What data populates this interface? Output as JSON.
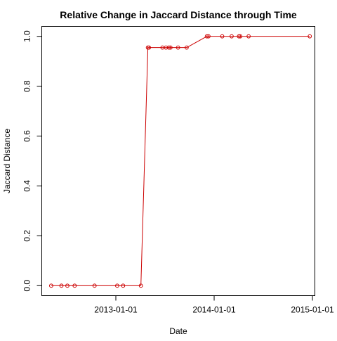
{
  "chart_data": {
    "type": "line",
    "title": "Relative Change in Jaccard Distance through Time",
    "xlabel": "Date",
    "ylabel": "Jaccard Distance",
    "x_ticks": [
      "2013-01-01",
      "2014-01-01",
      "2015-01-01"
    ],
    "y_ticks": [
      "0.0",
      "0.2",
      "0.4",
      "0.6",
      "0.8",
      "1.0"
    ],
    "xlim": [
      "2012-04-01",
      "2015-01-10"
    ],
    "ylim": [
      -0.04,
      1.04
    ],
    "grid": false,
    "series": [
      {
        "color": "#cc0000",
        "marker": "open-circle",
        "points": [
          {
            "x": "2012-05-06",
            "y": 0.0
          },
          {
            "x": "2012-06-13",
            "y": 0.0
          },
          {
            "x": "2012-07-05",
            "y": 0.0
          },
          {
            "x": "2012-08-01",
            "y": 0.0
          },
          {
            "x": "2012-10-14",
            "y": 0.0
          },
          {
            "x": "2013-01-06",
            "y": 0.0
          },
          {
            "x": "2013-01-28",
            "y": 0.0
          },
          {
            "x": "2013-04-04",
            "y": 0.0
          },
          {
            "x": "2013-04-30",
            "y": 0.955
          },
          {
            "x": "2013-05-04",
            "y": 0.955
          },
          {
            "x": "2013-06-23",
            "y": 0.955
          },
          {
            "x": "2013-07-06",
            "y": 0.955
          },
          {
            "x": "2013-07-17",
            "y": 0.955
          },
          {
            "x": "2013-07-23",
            "y": 0.955
          },
          {
            "x": "2013-08-20",
            "y": 0.955
          },
          {
            "x": "2013-09-21",
            "y": 0.955
          },
          {
            "x": "2013-12-05",
            "y": 1.0
          },
          {
            "x": "2013-12-11",
            "y": 1.0
          },
          {
            "x": "2014-01-31",
            "y": 1.0
          },
          {
            "x": "2014-03-07",
            "y": 1.0
          },
          {
            "x": "2014-04-03",
            "y": 1.0
          },
          {
            "x": "2014-04-08",
            "y": 1.0
          },
          {
            "x": "2014-05-09",
            "y": 1.0
          },
          {
            "x": "2014-12-22",
            "y": 1.0
          }
        ]
      }
    ]
  }
}
